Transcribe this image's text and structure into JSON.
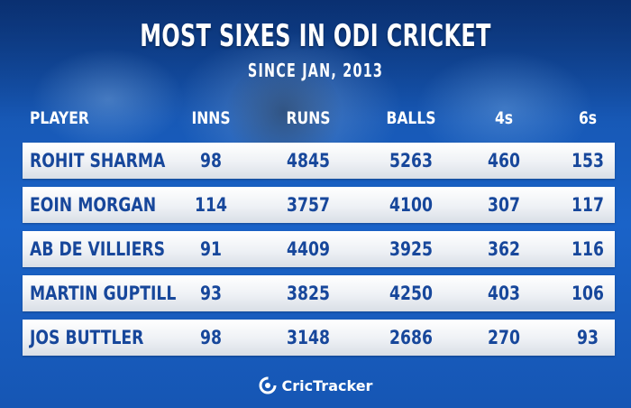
{
  "header": {
    "title": "MOST SIXES IN ODI CRICKET",
    "subtitle": "SINCE JAN, 2013"
  },
  "brand": {
    "name": "CricTracker",
    "icon": "crictracker-logo-icon"
  },
  "colors": {
    "background": "#1a63c8",
    "row_text": "#17479b",
    "header_text": "#ffffff"
  },
  "chart_data": {
    "type": "table",
    "title": "MOST SIXES IN ODI CRICKET",
    "subtitle": "SINCE JAN, 2013",
    "columns": [
      "PLAYER",
      "INNS",
      "RUNS",
      "BALLS",
      "4s",
      "6s"
    ],
    "rows": [
      [
        "ROHIT SHARMA",
        "98",
        "4845",
        "5263",
        "460",
        "153"
      ],
      [
        "EOIN MORGAN",
        "114",
        "3757",
        "4100",
        "307",
        "117"
      ],
      [
        "AB DE VILLIERS",
        "91",
        "4409",
        "3925",
        "362",
        "116"
      ],
      [
        "MARTIN GUPTILL",
        "93",
        "3825",
        "4250",
        "403",
        "106"
      ],
      [
        "JOS BUTTLER",
        "98",
        "3148",
        "2686",
        "270",
        "93"
      ]
    ]
  }
}
